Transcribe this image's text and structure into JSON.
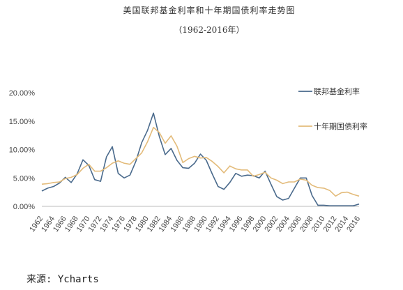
{
  "title": "美国联邦基金利率和十年期国债利率走势图",
  "subtitle": "（1962-2016年）",
  "source": "来源: Ycharts",
  "chart_data": {
    "type": "line",
    "title": "美国联邦基金利率和十年期国债利率走势图",
    "subtitle": "（1962-2016年）",
    "x": [
      1962,
      1963,
      1964,
      1965,
      1966,
      1967,
      1968,
      1969,
      1970,
      1971,
      1972,
      1973,
      1974,
      1975,
      1976,
      1977,
      1978,
      1979,
      1980,
      1981,
      1982,
      1983,
      1984,
      1985,
      1986,
      1987,
      1988,
      1989,
      1990,
      1991,
      1992,
      1993,
      1994,
      1995,
      1996,
      1997,
      1998,
      1999,
      2000,
      2001,
      2002,
      2003,
      2004,
      2005,
      2006,
      2007,
      2008,
      2009,
      2010,
      2011,
      2012,
      2013,
      2014,
      2015,
      2016
    ],
    "xticks": [
      "1962",
      "1964",
      "1966",
      "1968",
      "1970",
      "1972",
      "1974",
      "1976",
      "1978",
      "1980",
      "1982",
      "1984",
      "1986",
      "1988",
      "1990",
      "1992",
      "1994",
      "1996",
      "1998",
      "2000",
      "2002",
      "2004",
      "2006",
      "2008",
      "2010",
      "2012",
      "2014",
      "2016"
    ],
    "yticks": [
      "0.00%",
      "5.00%",
      "10.00%",
      "15.00%",
      "20.00%"
    ],
    "ylim": [
      0,
      20
    ],
    "grid": false,
    "legend_position": "right",
    "series": [
      {
        "name": "联邦基金利率",
        "color": "#4a6a8c",
        "values": [
          2.7,
          3.2,
          3.5,
          4.1,
          5.1,
          4.2,
          5.7,
          8.2,
          7.2,
          4.7,
          4.4,
          8.7,
          10.5,
          5.8,
          5.0,
          5.5,
          7.9,
          11.2,
          13.4,
          16.4,
          12.3,
          9.1,
          10.2,
          8.1,
          6.8,
          6.7,
          7.6,
          9.2,
          8.1,
          5.7,
          3.5,
          3.0,
          4.2,
          5.8,
          5.3,
          5.5,
          5.4,
          5.0,
          6.2,
          3.9,
          1.7,
          1.1,
          1.4,
          3.2,
          5.0,
          5.0,
          1.9,
          0.2,
          0.2,
          0.1,
          0.1,
          0.1,
          0.1,
          0.1,
          0.4
        ]
      },
      {
        "name": "十年期国债利率",
        "color": "#e3bb7a",
        "values": [
          3.9,
          4.0,
          4.2,
          4.3,
          4.9,
          5.1,
          5.6,
          6.7,
          7.4,
          6.2,
          6.2,
          6.8,
          7.6,
          8.0,
          7.6,
          7.4,
          8.4,
          9.4,
          11.4,
          13.9,
          13.0,
          11.1,
          12.4,
          10.6,
          7.7,
          8.4,
          8.8,
          8.5,
          8.6,
          7.9,
          7.0,
          5.9,
          7.1,
          6.6,
          6.4,
          6.4,
          5.3,
          5.6,
          6.0,
          5.0,
          4.6,
          4.0,
          4.3,
          4.3,
          4.8,
          4.6,
          3.7,
          3.3,
          3.2,
          2.8,
          1.8,
          2.4,
          2.5,
          2.1,
          1.8
        ]
      }
    ]
  }
}
